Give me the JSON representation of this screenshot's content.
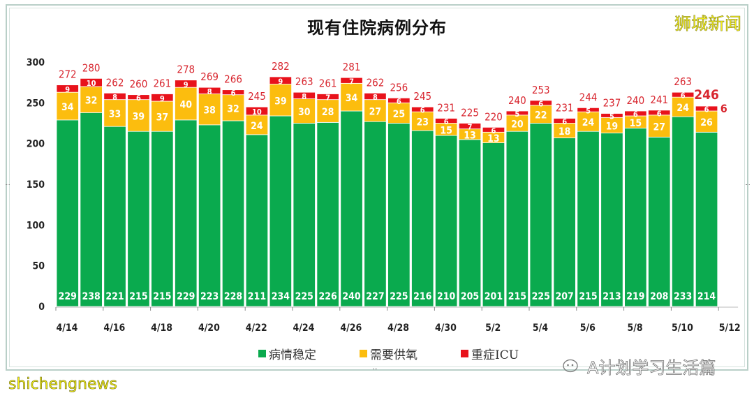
{
  "brand": "狮城新闻",
  "footer_watermark": "shichengnews",
  "channel_watermark": "A计划学习生活篇",
  "colors": {
    "stable": "#0aaa4e",
    "oxygen": "#fcbd0e",
    "icu": "#e8121b",
    "total_label": "#d8262f"
  },
  "chart_data": {
    "type": "bar",
    "stacked": true,
    "title": "现有住院病例分布",
    "xlabel": "",
    "ylabel": "",
    "ylim": [
      0,
      300
    ],
    "yticks": [
      0,
      50,
      100,
      150,
      200,
      250,
      300
    ],
    "grid": false,
    "legend_position": "bottom",
    "categories": [
      "4/14",
      "4/15",
      "4/16",
      "4/17",
      "4/18",
      "4/19",
      "4/20",
      "4/21",
      "4/22",
      "4/23",
      "4/24",
      "4/25",
      "4/26",
      "4/27",
      "4/28",
      "4/29",
      "4/30",
      "5/1",
      "5/2",
      "5/3",
      "5/4",
      "5/5",
      "5/6",
      "5/7",
      "5/8",
      "5/9",
      "5/10",
      "5/11"
    ],
    "xtick_labels": [
      "4/14",
      "4/16",
      "4/18",
      "4/20",
      "4/22",
      "4/24",
      "4/26",
      "4/28",
      "4/30",
      "5/2",
      "5/4",
      "5/6",
      "5/8",
      "5/10",
      "5/12"
    ],
    "series": [
      {
        "name": "病情稳定",
        "values": [
          229,
          238,
          221,
          215,
          215,
          229,
          223,
          228,
          211,
          234,
          225,
          226,
          240,
          227,
          225,
          216,
          210,
          205,
          201,
          215,
          225,
          207,
          215,
          213,
          219,
          208,
          233,
          214
        ]
      },
      {
        "name": "需要供氧",
        "values": [
          34,
          32,
          33,
          39,
          37,
          40,
          38,
          32,
          24,
          39,
          30,
          28,
          34,
          27,
          25,
          23,
          15,
          13,
          13,
          20,
          22,
          18,
          24,
          19,
          15,
          27,
          24,
          26
        ]
      },
      {
        "name": "重症ICU",
        "values": [
          9,
          10,
          8,
          6,
          9,
          9,
          8,
          6,
          10,
          9,
          8,
          7,
          7,
          8,
          6,
          6,
          6,
          7,
          6,
          5,
          6,
          6,
          5,
          5,
          6,
          6,
          6,
          6
        ]
      }
    ],
    "totals": [
      272,
      280,
      262,
      260,
      261,
      278,
      269,
      266,
      245,
      282,
      263,
      261,
      281,
      262,
      256,
      245,
      231,
      225,
      220,
      240,
      253,
      231,
      244,
      237,
      240,
      241,
      263,
      246
    ],
    "legend": [
      "病情稳定",
      "需要供氧",
      "重症ICU"
    ]
  }
}
